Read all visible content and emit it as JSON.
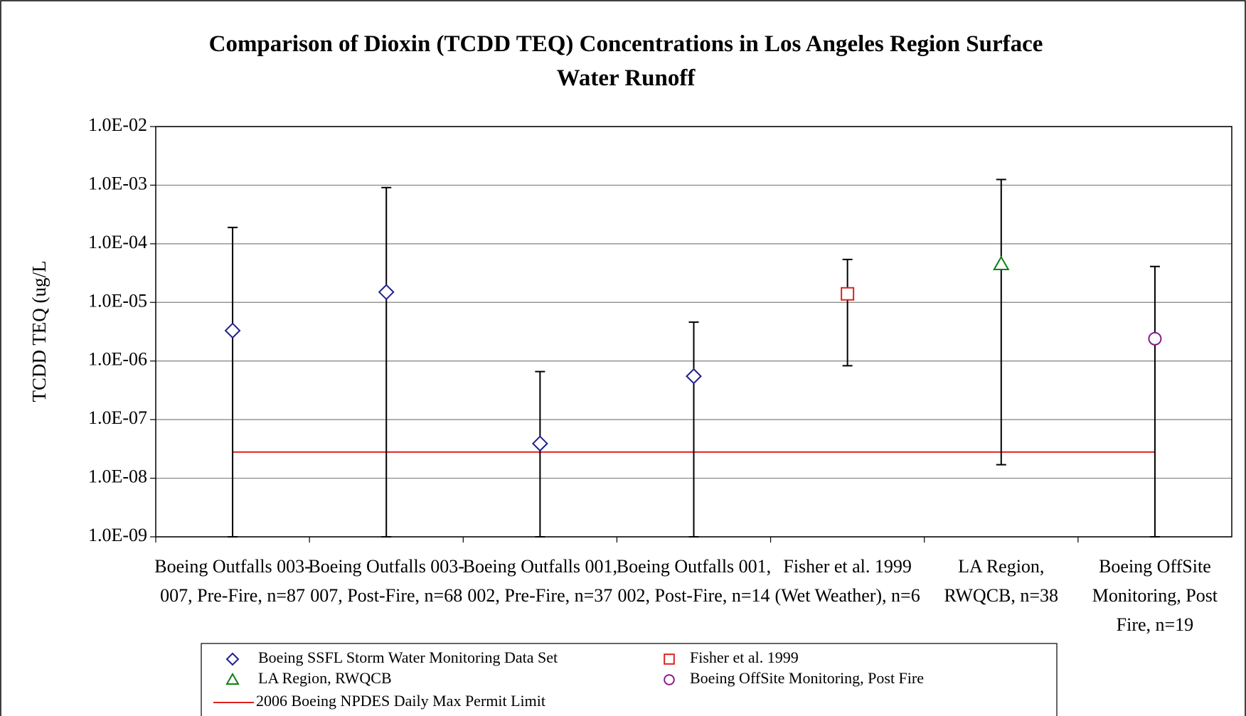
{
  "chart_data": {
    "type": "scatter",
    "title": "Comparison of Dioxin (TCDD TEQ) Concentrations in Los Angeles Region Surface Water Runoff",
    "y_label": "TCDD TEQ (ug/L",
    "log_y": true,
    "grid": true,
    "categories": [
      "Boeing Outfalls 003-007, Pre-Fire, n=87",
      "Boeing Outfalls 003-007, Post-Fire, n=68",
      "Boeing Outfalls 001, 002, Pre-Fire, n=37",
      "Boeing Outfalls 001, 002, Post-Fire, n=14",
      "Fisher et al. 1999 (Wet Weather), n=6",
      "LA Region, RWQCB, n=38",
      "Boeing OffSite Monitoring, Post Fire, n=19"
    ],
    "ylim": [
      1e-09,
      0.01
    ],
    "yticks": [
      {
        "value": 1e-09,
        "label": "1.0E-09"
      },
      {
        "value": 1e-08,
        "label": "1.0E-08"
      },
      {
        "value": 1e-07,
        "label": "1.0E-07"
      },
      {
        "value": 1e-06,
        "label": "1.0E-06"
      },
      {
        "value": 1e-05,
        "label": "1.0E-05"
      },
      {
        "value": 0.0001,
        "label": "1.0E-04"
      },
      {
        "value": 0.001,
        "label": "1.0E-03"
      },
      {
        "value": 0.01,
        "label": "1.0E-02"
      }
    ],
    "series": [
      {
        "name": "Boeing SSFL Storm Water Monitoring Data Set",
        "marker": "diamond",
        "color": "#1f1f8f",
        "values": [
          3.3e-06,
          1.5e-05,
          3.9e-08,
          5.5e-07,
          null,
          null,
          null
        ],
        "low": [
          1e-09,
          1e-09,
          1e-09,
          1e-09,
          null,
          null,
          null
        ],
        "high": [
          0.00019,
          0.00091,
          6.6e-07,
          4.6e-06,
          null,
          null,
          null
        ]
      },
      {
        "name": "Fisher et al. 1999",
        "marker": "square",
        "color": "#e02020",
        "values": [
          null,
          null,
          null,
          null,
          1.4e-05,
          null,
          null
        ],
        "low": [
          null,
          null,
          null,
          null,
          8.3e-07,
          null,
          null
        ],
        "high": [
          null,
          null,
          null,
          null,
          5.4e-05,
          null,
          null
        ]
      },
      {
        "name": "LA Region, RWQCB",
        "marker": "triangle",
        "color": "#108010",
        "values": [
          null,
          null,
          null,
          null,
          null,
          4.5e-05,
          null
        ],
        "low": [
          null,
          null,
          null,
          null,
          null,
          1.7e-08,
          null
        ],
        "high": [
          null,
          null,
          null,
          null,
          null,
          0.00125,
          null
        ]
      },
      {
        "name": "Boeing OffSite Monitoring, Post Fire",
        "marker": "circle",
        "color": "#8a1a8a",
        "values": [
          null,
          null,
          null,
          null,
          null,
          null,
          2.4e-06
        ],
        "low": [
          null,
          null,
          null,
          null,
          null,
          null,
          1e-09
        ],
        "high": [
          null,
          null,
          null,
          null,
          null,
          null,
          4.1e-05
        ]
      },
      {
        "name": "2006 Boeing NPDES Daily Max Permit Limit",
        "marker": "line",
        "color": "#e02020",
        "values": [
          2.8e-08,
          2.8e-08,
          2.8e-08,
          2.8e-08,
          2.8e-08,
          2.8e-08,
          2.8e-08
        ]
      }
    ]
  }
}
